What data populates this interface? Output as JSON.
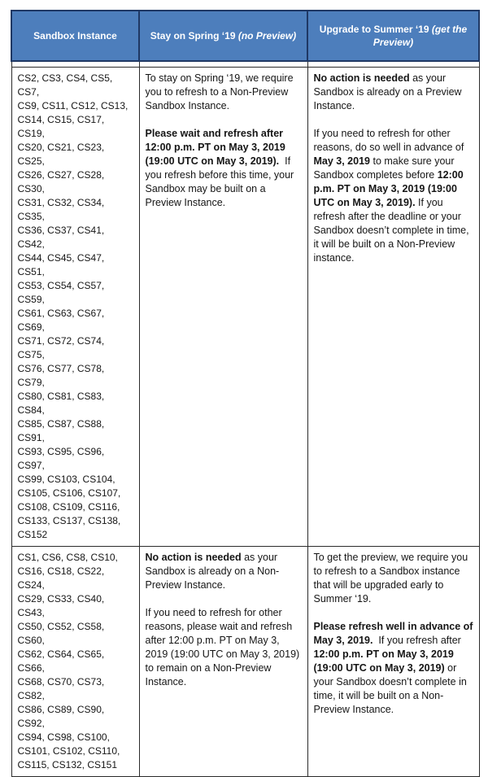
{
  "colors": {
    "header_background": "#4d7ebc",
    "header_border": "#1f3864",
    "header_text": "#ffffff",
    "body_border": "#2b2b2b",
    "body_text": "#151515"
  },
  "table": {
    "header": {
      "sandbox_instance": [
        {
          "text": "Sandbox Instance",
          "bold": true
        }
      ],
      "stay_spring": [
        {
          "text": "Stay on Spring ‘19 ",
          "bold": true
        },
        {
          "text": "(no Preview)",
          "bold": true,
          "italic": true
        }
      ],
      "upgrade_summer": [
        {
          "text": "Upgrade to Summer ‘19 ",
          "bold": true
        },
        {
          "text": "(get the Preview)",
          "bold": true,
          "italic": true
        }
      ]
    },
    "rows": [
      {
        "instances_lines": [
          "CS2, CS3, CS4, CS5, CS7,",
          "CS9, CS11, CS12, CS13,",
          "CS14, CS15, CS17, CS19,",
          "CS20, CS21, CS23, CS25,",
          "CS26, CS27, CS28, CS30,",
          "CS31, CS32, CS34, CS35,",
          "CS36, CS37, CS41, CS42,",
          "CS44, CS45, CS47, CS51,",
          "CS53, CS54, CS57, CS59,",
          "CS61, CS63, CS67, CS69,",
          "CS71, CS72, CS74, CS75,",
          "CS76, CS77, CS78, CS79,",
          "CS80, CS81, CS83, CS84,",
          "CS85, CS87, CS88, CS91,",
          "CS93, CS95, CS96, CS97,",
          "CS99, CS103, CS104,",
          "CS105, CS106, CS107,",
          "CS108, CS109, CS116,",
          "CS133, CS137, CS138,",
          "CS152"
        ],
        "stay_paragraphs": [
          [
            {
              "text": "To stay on Spring ‘19, we require you to refresh to a Non-Preview Sandbox Instance."
            }
          ],
          [
            {
              "text": "Please wait and refresh after 12:00 p.m. PT on May 3, 2019 (19:00 UTC on May 3, 2019).",
              "bold": true
            },
            {
              "text": "  If you refresh before this time, your Sandbox may be built on a Preview Instance."
            }
          ]
        ],
        "upgrade_paragraphs": [
          [
            {
              "text": "No action is needed",
              "bold": true
            },
            {
              "text": " as your Sandbox is already on a Preview Instance."
            }
          ],
          [
            {
              "text": "If you need to refresh for other reasons, do so well in advance of "
            },
            {
              "text": "May 3, 2019",
              "bold": true
            },
            {
              "text": " to make sure your Sandbox completes before "
            },
            {
              "text": "12:00 p.m. PT on May 3, 2019 (19:00 UTC on May 3, 2019).",
              "bold": true
            },
            {
              "text": " If you refresh after the deadline or your Sandbox doesn’t complete in time, it will be built on a Non-Preview instance."
            }
          ]
        ]
      },
      {
        "instances_lines": [
          "CS1, CS6, CS8, CS10,",
          "CS16, CS18, CS22, CS24,",
          "CS29, CS33, CS40, CS43,",
          "CS50, CS52, CS58, CS60,",
          "CS62, CS64, CS65, CS66,",
          "CS68, CS70, CS73, CS82,",
          "CS86, CS89, CS90, CS92,",
          "CS94, CS98, CS100,",
          "CS101, CS102, CS110,",
          "CS115, CS132, CS151"
        ],
        "stay_paragraphs": [
          [
            {
              "text": "No action is needed",
              "bold": true
            },
            {
              "text": " as your Sandbox is already on a Non-Preview Instance."
            }
          ],
          [
            {
              "text": "If you need to refresh for other reasons, please wait and refresh after 12:00 p.m. PT on May 3, 2019 (19:00 UTC on May 3, 2019) to remain on a Non-Preview Instance."
            }
          ]
        ],
        "upgrade_paragraphs": [
          [
            {
              "text": "To get the preview, we require you to refresh to a Sandbox instance that will be upgraded early to Summer ‘19."
            }
          ],
          [
            {
              "text": "Please refresh well in advance of May 3, 2019.",
              "bold": true
            },
            {
              "text": "  If you refresh after "
            },
            {
              "text": "12:00 p.m. PT on May 3, 2019 (19:00 UTC on May 3, 2019)",
              "bold": true
            },
            {
              "text": " or your Sandbox doesn’t complete in time, it will be built on a Non-Preview Instance."
            }
          ]
        ]
      }
    ]
  }
}
